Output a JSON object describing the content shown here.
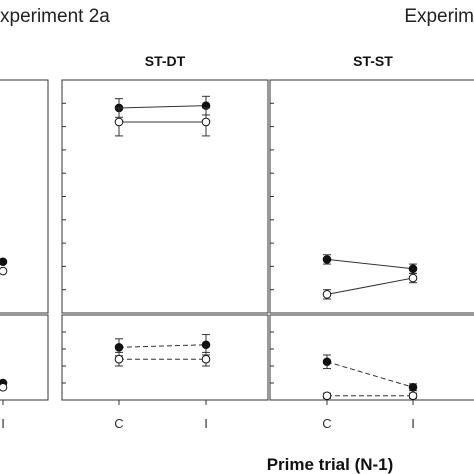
{
  "header": {
    "left": "xperiment 2a",
    "right": "Experim"
  },
  "chart_data": {
    "type": "line",
    "xlabel": "Prime trial (N-1)",
    "categories": [
      "C",
      "I"
    ],
    "y_top_range": [
      0,
      100
    ],
    "y_bottom_range": [
      0,
      10
    ],
    "panels": [
      {
        "title": "",
        "tick_labels": [
          "I"
        ],
        "top": [
          {
            "marker": "filled",
            "points": [
              [
                1,
                22
              ]
            ]
          },
          {
            "marker": "open",
            "points": [
              [
                1,
                18
              ]
            ]
          }
        ],
        "bottom": [
          {
            "marker": "filled",
            "points": [
              [
                1,
                2
              ]
            ]
          },
          {
            "marker": "open",
            "points": [
              [
                1,
                1.5
              ]
            ]
          }
        ]
      },
      {
        "title": "ST-DT",
        "tick_labels": [
          "C",
          "I"
        ],
        "top": [
          {
            "marker": "filled",
            "values": [
              88,
              89
            ],
            "err": [
              4,
              4
            ]
          },
          {
            "marker": "open",
            "values": [
              82,
              82
            ],
            "err": [
              6,
              6
            ]
          }
        ],
        "bottom": [
          {
            "marker": "filled",
            "values": [
              6.2,
              6.5
            ],
            "err": [
              1.0,
              1.2
            ]
          },
          {
            "marker": "open",
            "values": [
              4.8,
              4.8
            ],
            "err": [
              0.8,
              0.8
            ]
          }
        ]
      },
      {
        "title": "ST-ST",
        "tick_labels": [
          "C",
          "I"
        ],
        "top": [
          {
            "marker": "filled",
            "values": [
              23,
              19
            ],
            "err": [
              2,
              2
            ]
          },
          {
            "marker": "open",
            "values": [
              8,
              15
            ],
            "err": [
              2,
              2
            ]
          }
        ],
        "bottom": [
          {
            "marker": "filled",
            "values": [
              4.5,
              1.5
            ],
            "err": [
              0.8,
              0.4
            ]
          },
          {
            "marker": "open",
            "values": [
              0.5,
              0.5
            ],
            "err": [
              0.3,
              0.3
            ]
          }
        ]
      }
    ]
  }
}
